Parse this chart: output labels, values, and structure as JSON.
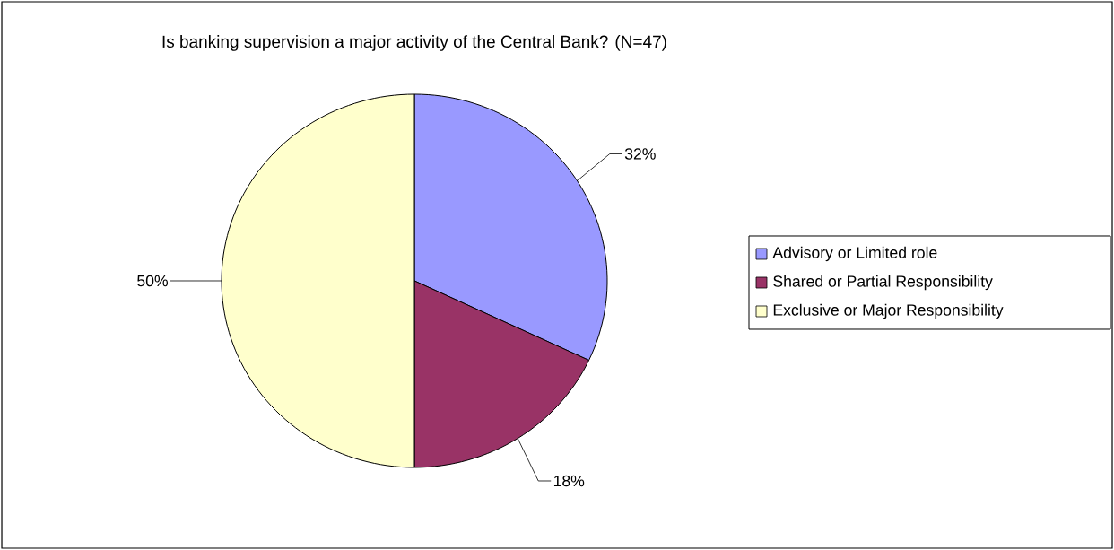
{
  "chart_data": {
    "type": "pie",
    "title": "Is banking supervision a major activity of the Central Bank? (N=47)",
    "categories": [
      "Advisory or Limited role",
      "Shared or Partial Responsibility",
      "Exclusive or Major Responsibility"
    ],
    "values": [
      32,
      18,
      50
    ],
    "colors": [
      "#9999ff",
      "#993366",
      "#ffffcc"
    ],
    "value_labels": [
      "32%",
      "18%",
      "50%"
    ],
    "legend": "right"
  }
}
